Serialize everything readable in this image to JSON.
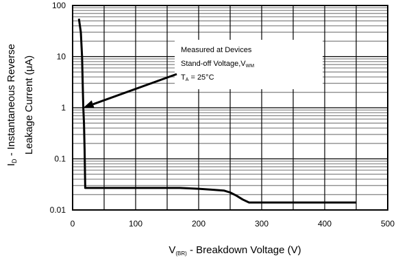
{
  "chart_data": {
    "type": "line",
    "title": "",
    "xlabel": {
      "prefix": "V",
      "subscript": "(BR)",
      "rest": " - Breakdown Voltage (V)"
    },
    "ylabel": {
      "line1_prefix": "I",
      "line1_subscript": "D",
      "line1_rest": " - Instantaneous Reverse",
      "line2": "Leakage Current (μA)"
    },
    "xlim": [
      0,
      500
    ],
    "ylim": [
      0.01,
      100
    ],
    "yscale": "log",
    "grid": true,
    "x_ticks": [
      0,
      100,
      200,
      300,
      400,
      500
    ],
    "x_tick_labels": [
      "0",
      "100",
      "200",
      "300",
      "400",
      "500"
    ],
    "y_ticks": [
      0.01,
      0.1,
      1,
      10,
      100
    ],
    "y_tick_labels": [
      "0.01",
      "0.1",
      "1",
      "10",
      "100"
    ],
    "series": [
      {
        "color": "#000000",
        "x": [
          10,
          13,
          15,
          16,
          17,
          18,
          19,
          20,
          30,
          60,
          100,
          150,
          170,
          200,
          220,
          240,
          250,
          260,
          270,
          280,
          300,
          350,
          400,
          450
        ],
        "y": [
          55,
          30,
          10,
          3,
          1,
          0.5,
          0.15,
          0.027,
          0.027,
          0.027,
          0.027,
          0.027,
          0.027,
          0.026,
          0.025,
          0.024,
          0.022,
          0.019,
          0.016,
          0.014,
          0.014,
          0.014,
          0.014,
          0.014
        ]
      }
    ],
    "annotation": {
      "line1": "Measured at Devices",
      "line2_main": "Stand-off Voltage,V",
      "line2_subscript": "WM",
      "line3_main": "T",
      "line3_subscript": "A",
      "line3_rest": " = 25°C",
      "arrow_target": {
        "x": 17,
        "y": 1
      }
    }
  }
}
